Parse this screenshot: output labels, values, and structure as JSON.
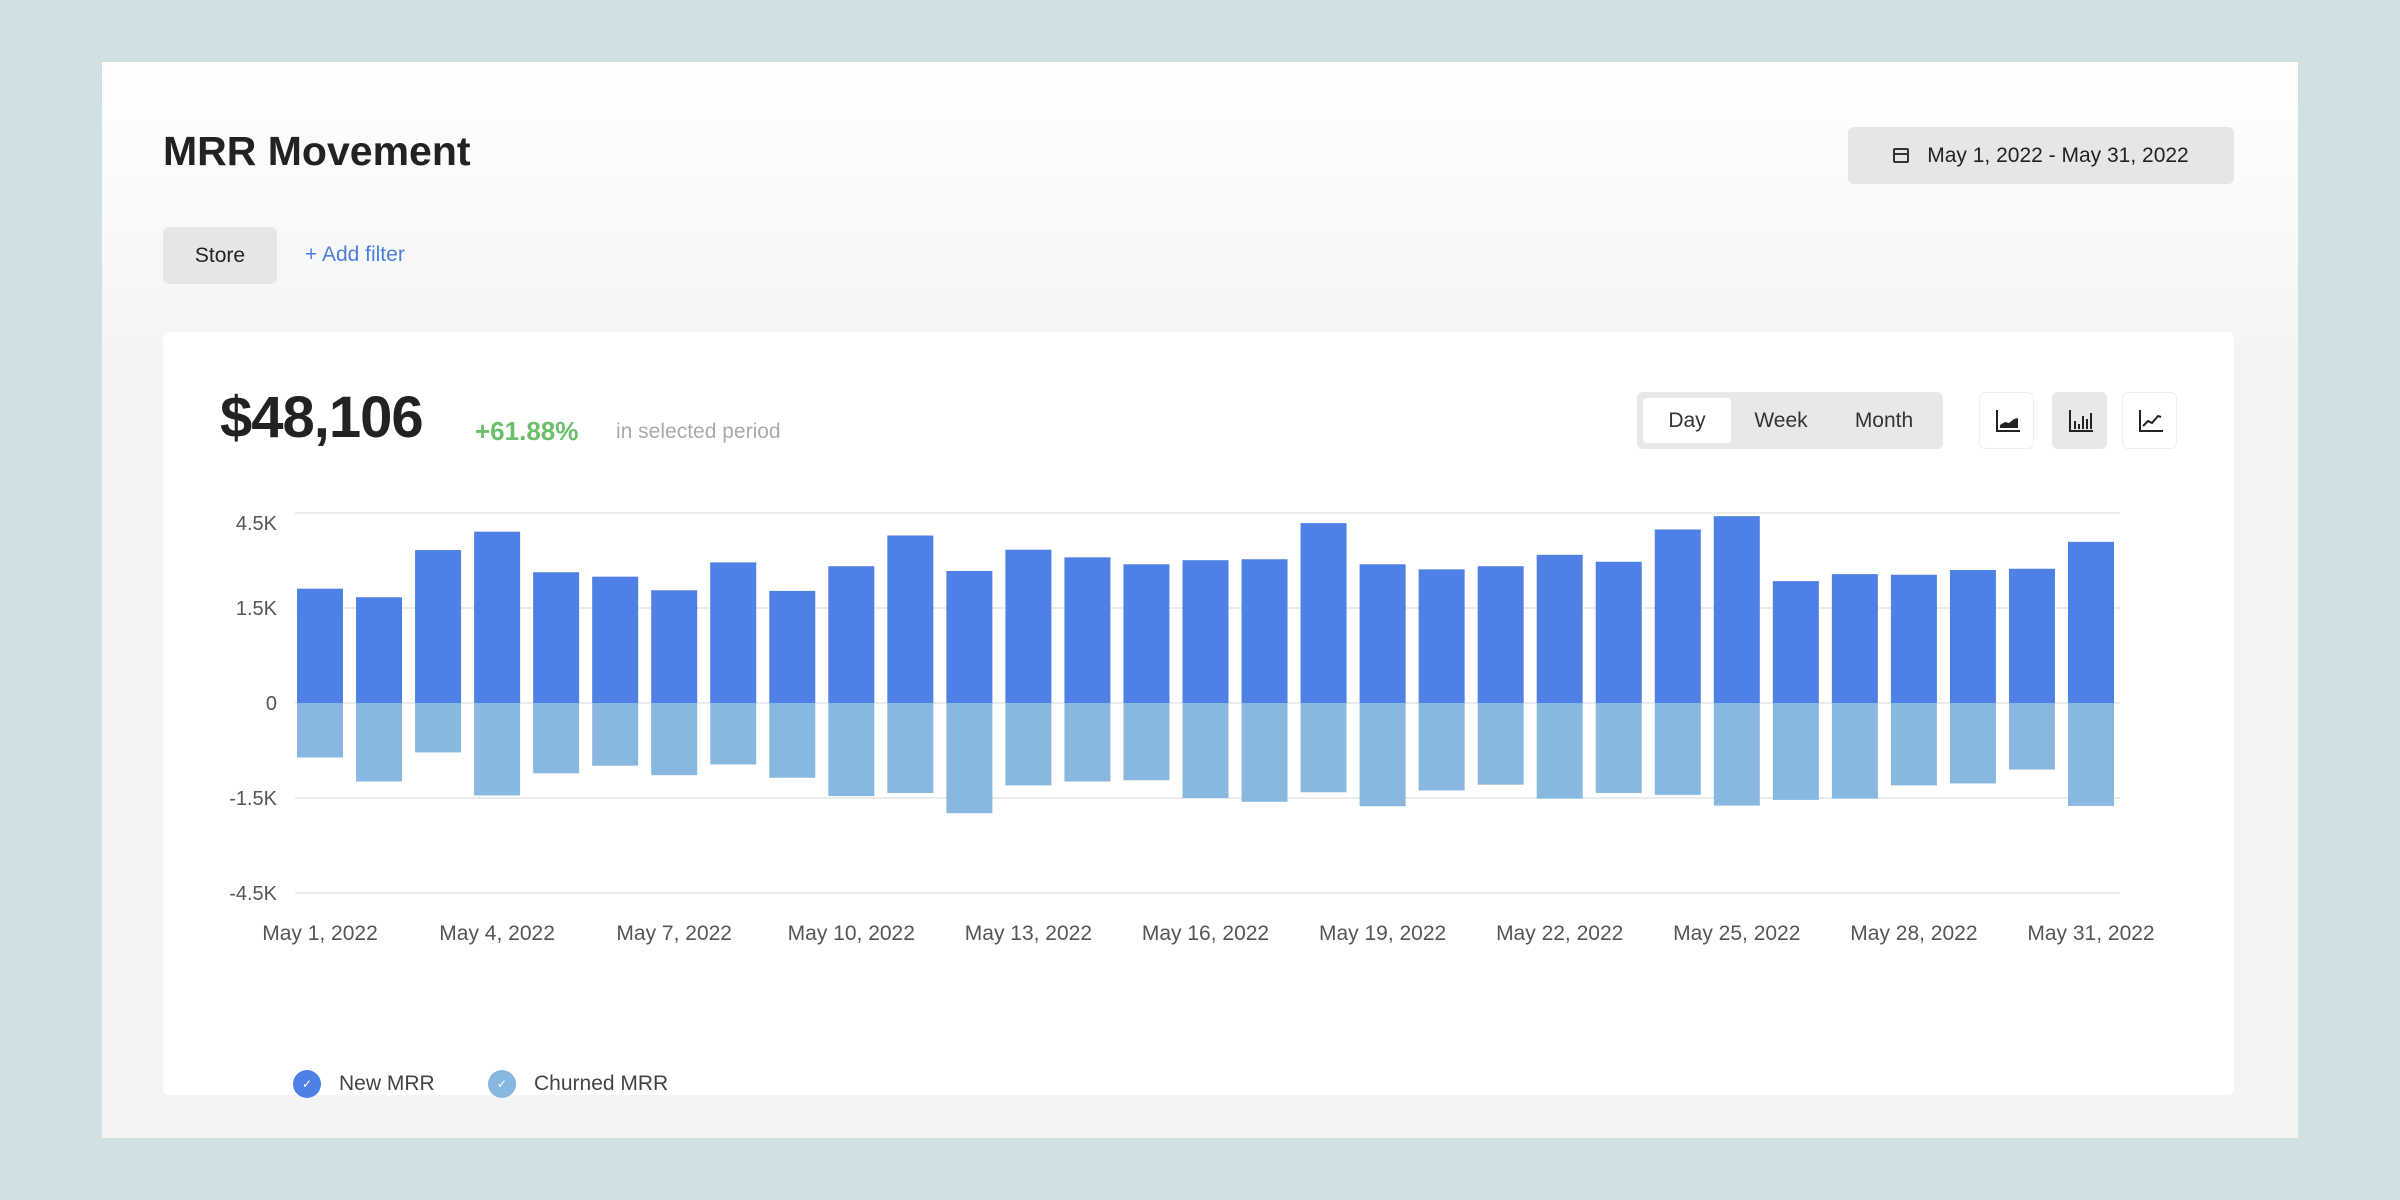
{
  "header": {
    "title": "MRR Movement",
    "date_range": "May 1, 2022 - May 31, 2022",
    "filter_store": "Store",
    "add_filter": "+ Add filter"
  },
  "summary": {
    "total": "$48,106",
    "change": "+61.88%",
    "period_label": "in selected period"
  },
  "granularity": {
    "options": [
      "Day",
      "Week",
      "Month"
    ],
    "selected": "Day"
  },
  "chart_types": [
    {
      "icon": "area-chart-icon",
      "selected": false
    },
    {
      "icon": "bar-chart-icon",
      "selected": true
    },
    {
      "icon": "line-chart-icon",
      "selected": false
    }
  ],
  "colors": {
    "new": "#4f80e6",
    "churned": "#88b8df",
    "positive": "#6bbf6b",
    "link": "#4a7fe0"
  },
  "chart_data": {
    "type": "bar",
    "stacked": "diverging",
    "title": "",
    "xlabel": "",
    "ylabel": "",
    "categories": [
      "May 1, 2022",
      "May 2, 2022",
      "May 3, 2022",
      "May 4, 2022",
      "May 5, 2022",
      "May 6, 2022",
      "May 7, 2022",
      "May 8, 2022",
      "May 9, 2022",
      "May 10, 2022",
      "May 11, 2022",
      "May 12, 2022",
      "May 13, 2022",
      "May 14, 2022",
      "May 15, 2022",
      "May 16, 2022",
      "May 17, 2022",
      "May 18, 2022",
      "May 19, 2022",
      "May 20, 2022",
      "May 21, 2022",
      "May 22, 2022",
      "May 23, 2022",
      "May 24, 2022",
      "May 25, 2022",
      "May 26, 2022",
      "May 27, 2022",
      "May 28, 2022",
      "May 29, 2022",
      "May 30, 2022",
      "May 31, 2022"
    ],
    "x_tick_labels": [
      "May 1, 2022",
      "May 4, 2022",
      "May 7, 2022",
      "May 10, 2022",
      "May 13, 2022",
      "May 16, 2022",
      "May 19, 2022",
      "May 22, 2022",
      "May 25, 2022",
      "May 28, 2022",
      "May 31, 2022"
    ],
    "y_ticks": [
      {
        "value": 4500,
        "label": "4.5K"
      },
      {
        "value": 1500,
        "label": "1.5K"
      },
      {
        "value": 0,
        "label": "0"
      },
      {
        "value": -1500,
        "label": "-1.5K"
      },
      {
        "value": -4500,
        "label": "-4.5K"
      }
    ],
    "yscale": "symlog",
    "ylim": [
      -4500,
      4500
    ],
    "grid": true,
    "legend_position": "bottom-left",
    "series": [
      {
        "name": "New MRR",
        "values": [
          2110,
          1840,
          3330,
          3910,
          2630,
          2490,
          2060,
          2940,
          2040,
          2820,
          3790,
          2670,
          3340,
          3100,
          2880,
          3010,
          3040,
          4180,
          2880,
          2720,
          2820,
          3180,
          2960,
          3980,
          4400,
          2350,
          2570,
          2550,
          2700,
          2740,
          3590
        ]
      },
      {
        "name": "Churned MRR",
        "values": [
          -860,
          -1240,
          -780,
          -1460,
          -1110,
          -990,
          -1140,
          -970,
          -1180,
          -1470,
          -1420,
          -1980,
          -1300,
          -1240,
          -1220,
          -1500,
          -1620,
          -1410,
          -1760,
          -1380,
          -1290,
          -1520,
          -1420,
          -1450,
          -1740,
          -1560,
          -1520,
          -1300,
          -1270,
          -1050,
          -1750
        ]
      }
    ]
  }
}
